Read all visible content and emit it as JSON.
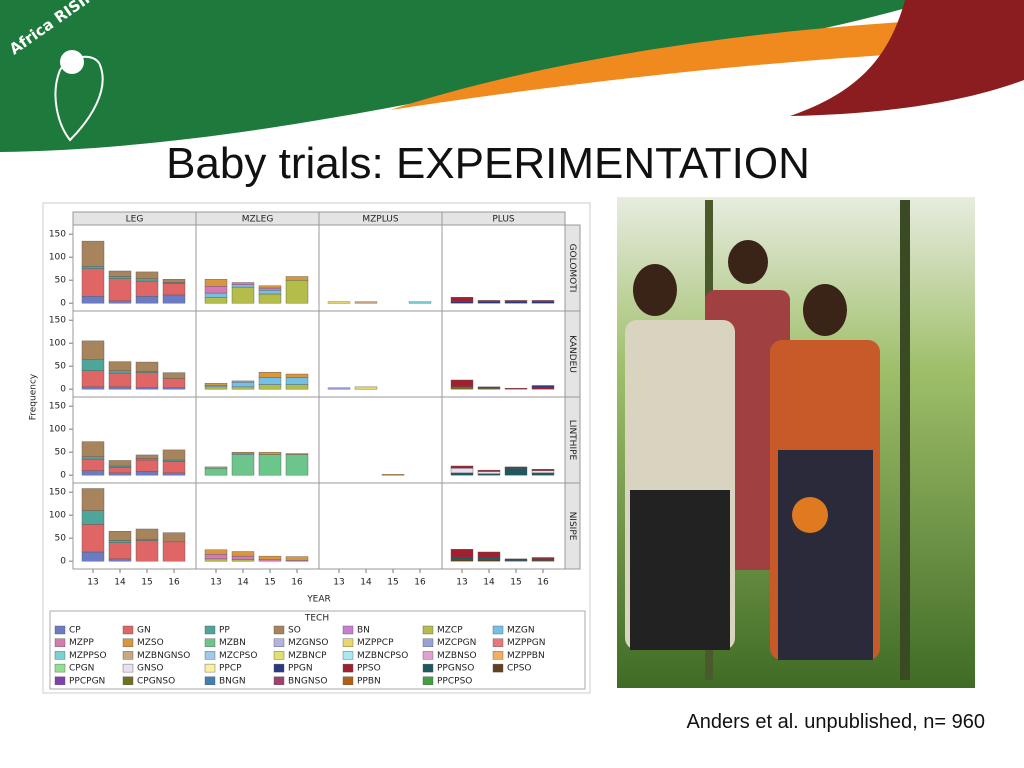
{
  "logo": "Africa RISING",
  "title": "Baby trials: EXPERIMENTATION",
  "caption": "Anders et al. unpublished, n= 960",
  "chart_data": {
    "type": "bar",
    "stacked": true,
    "x_label": "YEAR",
    "y_label": "Frequency",
    "legend_title": "TECH",
    "columns": [
      "LEG",
      "MZLEG",
      "MZPLUS",
      "PLUS"
    ],
    "rows": [
      "GOLOMOTI",
      "KANDEU",
      "LINTHIPE",
      "NISIPE"
    ],
    "categories": [
      "13",
      "14",
      "15",
      "16"
    ],
    "ylim": [
      -17,
      170
    ],
    "yticks": [
      0,
      50,
      100,
      150
    ],
    "series": [
      {
        "name": "CP",
        "color": "#6c7cc4"
      },
      {
        "name": "GN",
        "color": "#e06666"
      },
      {
        "name": "PP",
        "color": "#4ea59a"
      },
      {
        "name": "SO",
        "color": "#a8845c"
      },
      {
        "name": "BN",
        "color": "#c77fd1"
      },
      {
        "name": "MZCP",
        "color": "#b4bc4a"
      },
      {
        "name": "MZGN",
        "color": "#74c1e6"
      },
      {
        "name": "MZPP",
        "color": "#d47bb0"
      },
      {
        "name": "MZSO",
        "color": "#d9963c"
      },
      {
        "name": "MZBN",
        "color": "#6cc58a"
      },
      {
        "name": "MZGNSO",
        "color": "#b3b3e0"
      },
      {
        "name": "MZPPCP",
        "color": "#e8d86a"
      },
      {
        "name": "MZCPGN",
        "color": "#9aa0d8"
      },
      {
        "name": "MZPPGN",
        "color": "#e87878"
      },
      {
        "name": "MZPPSO",
        "color": "#7ad1d1"
      },
      {
        "name": "MZBNGNSO",
        "color": "#c8a880"
      },
      {
        "name": "MZCPSO",
        "color": "#a0c8e8"
      },
      {
        "name": "MZBNCP",
        "color": "#e0e070"
      },
      {
        "name": "MZBNCPSO",
        "color": "#a8e8f0"
      },
      {
        "name": "MZBNSO",
        "color": "#e0a0d0"
      },
      {
        "name": "MZPPBN",
        "color": "#f0b060"
      },
      {
        "name": "CPGN",
        "color": "#90e090"
      },
      {
        "name": "GNSO",
        "color": "#e8e0f0"
      },
      {
        "name": "PPCP",
        "color": "#f8f0a0"
      },
      {
        "name": "PPGN",
        "color": "#2a3a80"
      },
      {
        "name": "PPSO",
        "color": "#a02030"
      },
      {
        "name": "PPGNSO",
        "color": "#205860"
      },
      {
        "name": "CPSO",
        "color": "#604020"
      },
      {
        "name": "PPCPGN",
        "color": "#8040b0"
      },
      {
        "name": "CPGNSO",
        "color": "#707020"
      },
      {
        "name": "BNGN",
        "color": "#4080b0"
      },
      {
        "name": "BNGNSO",
        "color": "#a04070"
      },
      {
        "name": "PPBN",
        "color": "#b06010"
      },
      {
        "name": "PPCPSO",
        "color": "#40a040"
      }
    ],
    "panels": [
      [
        {
          "segments": [
            {
              "name": "CP",
              "values": [
                15,
                5,
                15,
                18
              ]
            },
            {
              "name": "GN",
              "values": [
                60,
                48,
                33,
                25
              ]
            },
            {
              "name": "PP",
              "values": [
                5,
                5,
                5,
                2
              ]
            },
            {
              "name": "SO",
              "values": [
                55,
                12,
                15,
                7
              ]
            }
          ]
        },
        {
          "segments": [
            {
              "name": "MZCP",
              "values": [
                12,
                35,
                20,
                50
              ]
            },
            {
              "name": "MZGN",
              "values": [
                10,
                5,
                8,
                0
              ]
            },
            {
              "name": "MZPP",
              "values": [
                15,
                5,
                5,
                0
              ]
            },
            {
              "name": "MZSO",
              "values": [
                15,
                0,
                5,
                8
              ]
            }
          ]
        },
        {
          "segments": [
            {
              "name": "MZPPCP",
              "values": [
                3,
                0,
                0,
                0
              ]
            },
            {
              "name": "MZBNGNSO",
              "values": [
                0,
                3,
                0,
                0
              ]
            },
            {
              "name": "MZPPSO",
              "values": [
                0,
                0,
                0,
                3
              ]
            }
          ]
        },
        {
          "segments": [
            {
              "name": "PPGN",
              "values": [
                3,
                3,
                3,
                3
              ]
            },
            {
              "name": "PPSO",
              "values": [
                10,
                3,
                3,
                3
              ]
            }
          ]
        }
      ],
      [
        {
          "segments": [
            {
              "name": "CP",
              "values": [
                5,
                5,
                3,
                3
              ]
            },
            {
              "name": "GN",
              "values": [
                35,
                30,
                33,
                20
              ]
            },
            {
              "name": "PP",
              "values": [
                25,
                5,
                3,
                0
              ]
            },
            {
              "name": "SO",
              "values": [
                40,
                20,
                20,
                13
              ]
            }
          ]
        },
        {
          "segments": [
            {
              "name": "MZCP",
              "values": [
                5,
                5,
                10,
                10
              ]
            },
            {
              "name": "MZGN",
              "values": [
                3,
                10,
                15,
                15
              ]
            },
            {
              "name": "MZSO",
              "values": [
                5,
                3,
                12,
                8
              ]
            }
          ]
        },
        {
          "segments": [
            {
              "name": "MZCPGN",
              "values": [
                3,
                0,
                0,
                0
              ]
            },
            {
              "name": "MZPPCP",
              "values": [
                0,
                5,
                0,
                0
              ]
            }
          ]
        },
        {
          "segments": [
            {
              "name": "CPGNSO",
              "values": [
                5,
                2,
                0,
                0
              ]
            },
            {
              "name": "PPSO",
              "values": [
                15,
                3,
                2,
                3
              ]
            },
            {
              "name": "PPGN",
              "values": [
                0,
                0,
                0,
                5
              ]
            }
          ]
        }
      ],
      [
        {
          "segments": [
            {
              "name": "CP",
              "values": [
                10,
                5,
                8,
                5
              ]
            },
            {
              "name": "GN",
              "values": [
                25,
                12,
                25,
                25
              ]
            },
            {
              "name": "PP",
              "values": [
                5,
                3,
                3,
                3
              ]
            },
            {
              "name": "SO",
              "values": [
                33,
                12,
                8,
                22
              ]
            }
          ]
        },
        {
          "segments": [
            {
              "name": "MZBN",
              "values": [
                15,
                45,
                45,
                45
              ]
            },
            {
              "name": "MZGN",
              "values": [
                0,
                3,
                0,
                0
              ]
            },
            {
              "name": "MZSO",
              "values": [
                3,
                2,
                5,
                2
              ]
            }
          ]
        },
        {
          "segments": [
            {
              "name": "MZSO",
              "values": [
                0,
                0,
                2,
                0
              ]
            }
          ]
        },
        {
          "segments": [
            {
              "name": "PPGNSO",
              "values": [
                5,
                3,
                15,
                5
              ]
            },
            {
              "name": "GNSO",
              "values": [
                10,
                5,
                0,
                5
              ]
            },
            {
              "name": "PPSO",
              "values": [
                5,
                3,
                3,
                3
              ]
            }
          ]
        }
      ],
      [
        {
          "segments": [
            {
              "name": "CP",
              "values": [
                20,
                5,
                0,
                0
              ]
            },
            {
              "name": "GN",
              "values": [
                60,
                35,
                45,
                42
              ]
            },
            {
              "name": "PP",
              "values": [
                30,
                5,
                3,
                0
              ]
            },
            {
              "name": "SO",
              "values": [
                48,
                20,
                22,
                20
              ]
            }
          ]
        },
        {
          "segments": [
            {
              "name": "MZCP",
              "values": [
                5,
                3,
                0,
                0
              ]
            },
            {
              "name": "MZPP",
              "values": [
                10,
                8,
                3,
                2
              ]
            },
            {
              "name": "MZSO",
              "values": [
                10,
                10,
                8,
                8
              ]
            }
          ]
        },
        {
          "segments": []
        },
        {
          "segments": [
            {
              "name": "CPSO",
              "values": [
                3,
                3,
                0,
                2
              ]
            },
            {
              "name": "PPGNSO",
              "values": [
                5,
                5,
                2,
                3
              ]
            },
            {
              "name": "PPSO",
              "values": [
                18,
                12,
                3,
                3
              ]
            }
          ]
        }
      ]
    ]
  }
}
